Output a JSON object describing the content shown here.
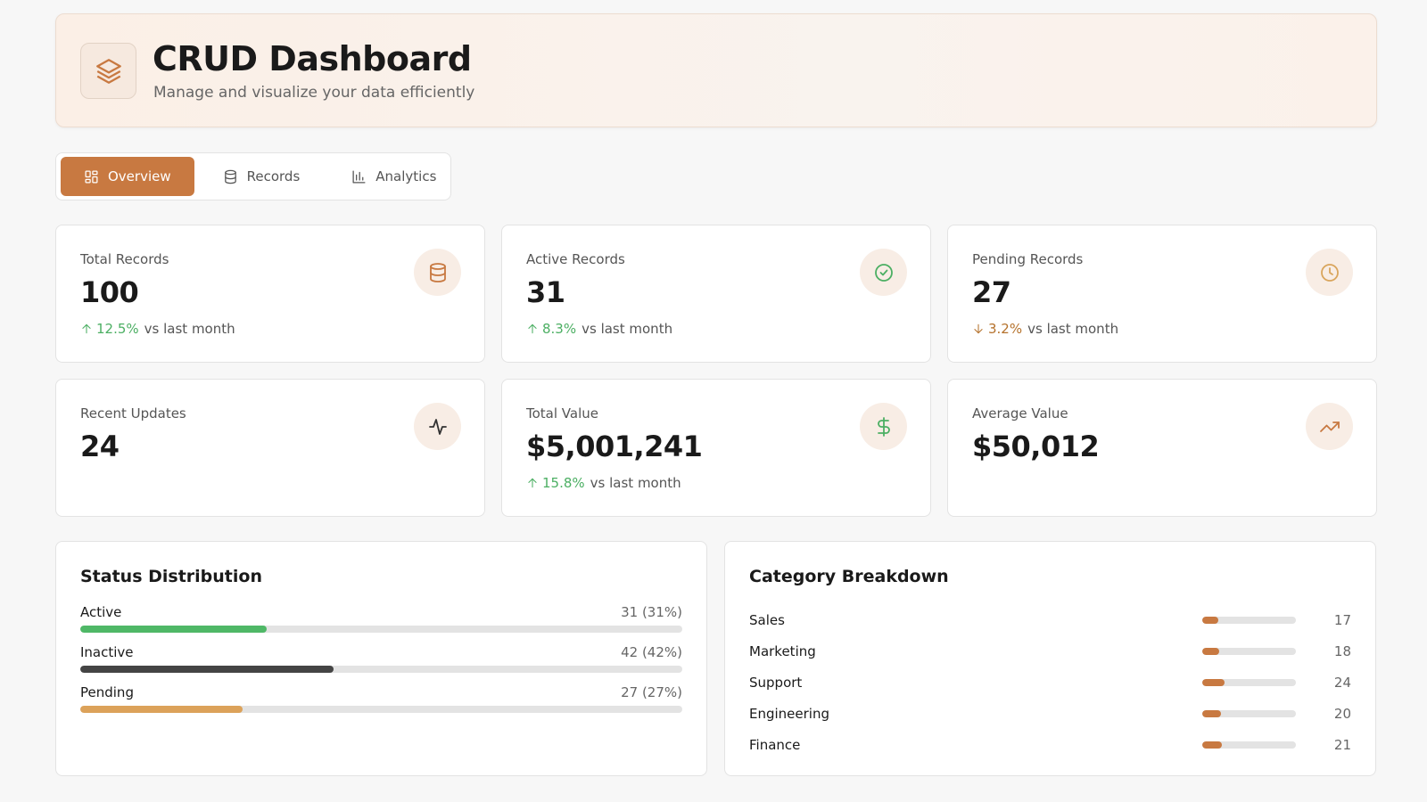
{
  "header": {
    "title": "CRUD Dashboard",
    "subtitle": "Manage and visualize your data efficiently"
  },
  "accent_color": "#c87941",
  "tabs": [
    {
      "label": "Overview",
      "active": true
    },
    {
      "label": "Records",
      "active": false
    },
    {
      "label": "Analytics",
      "active": false
    }
  ],
  "stats": [
    {
      "label": "Total Records",
      "value": 100,
      "change": "12.5%",
      "direction": "up",
      "note": "vs last month",
      "icon_color": "#c87941"
    },
    {
      "label": "Active Records",
      "value": 31,
      "change": "8.3%",
      "direction": "up",
      "note": "vs last month",
      "icon_color": "#4caf63"
    },
    {
      "label": "Pending Records",
      "value": 27,
      "change": "3.2%",
      "direction": "down",
      "note": "vs last month",
      "icon_color": "#d9a55c"
    },
    {
      "label": "Recent Updates",
      "value": 24,
      "icon_color": "#333333"
    },
    {
      "label": "Total Value",
      "value": "$5,001,241",
      "change": "15.8%",
      "direction": "up",
      "note": "vs last month",
      "icon_color": "#4caf63"
    },
    {
      "label": "Average Value",
      "value": "$50,012",
      "icon_color": "#c87941"
    }
  ],
  "status_distribution": {
    "title": "Status Distribution",
    "items": [
      {
        "label": "Active",
        "count_label": "31 (31%)",
        "percent": 31,
        "color": "#4fb867"
      },
      {
        "label": "Inactive",
        "count_label": "42 (42%)",
        "percent": 42,
        "color": "#444444"
      },
      {
        "label": "Pending",
        "count_label": "27 (27%)",
        "percent": 27,
        "color": "#dca25a"
      }
    ]
  },
  "category_breakdown": {
    "title": "Category Breakdown",
    "items": [
      {
        "label": "Sales",
        "count": 17
      },
      {
        "label": "Marketing",
        "count": 18
      },
      {
        "label": "Support",
        "count": 24
      },
      {
        "label": "Engineering",
        "count": 20
      },
      {
        "label": "Finance",
        "count": 21
      }
    ]
  }
}
